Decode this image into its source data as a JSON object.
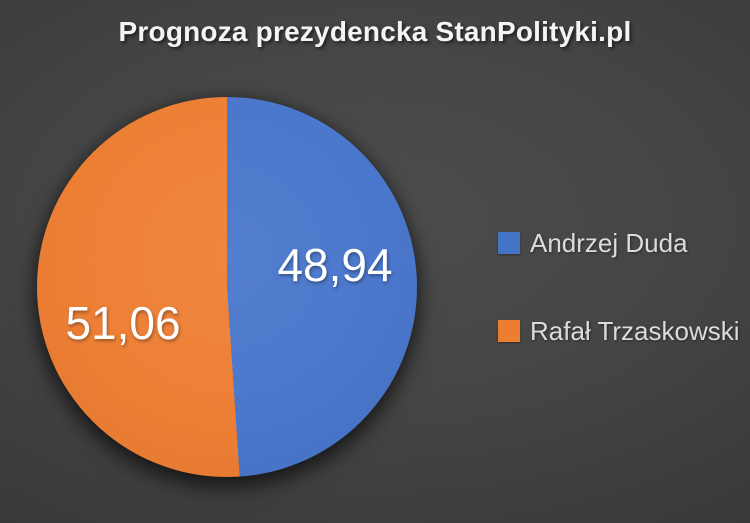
{
  "title": "Prognoza prezydencka StanPolityki.pl",
  "chart_data": {
    "type": "pie",
    "title": "Prognoza prezydencka StanPolityki.pl",
    "categories": [
      "Andrzej Duda",
      "Rafał Trzaskowski"
    ],
    "values": [
      48.94,
      51.06
    ],
    "data_labels": [
      "48,94",
      "51,06"
    ],
    "colors": [
      "#4775CB",
      "#ED7D31"
    ],
    "start_angle_deg": 0,
    "direction": "clockwise",
    "legend_position": "right",
    "data_label_color": "#ffffff",
    "background": "dark-gray-radial-gradient"
  },
  "legend": {
    "items": [
      {
        "label": "Andrzej Duda",
        "color": "#4472C4"
      },
      {
        "label": "Rafał Trzaskowski",
        "color": "#ED7D31"
      }
    ]
  },
  "colors": {
    "title_text": "#f4f4f4",
    "legend_text": "#dcdcdc",
    "background_center": "#4c4c4c",
    "background_edge": "#292929"
  }
}
